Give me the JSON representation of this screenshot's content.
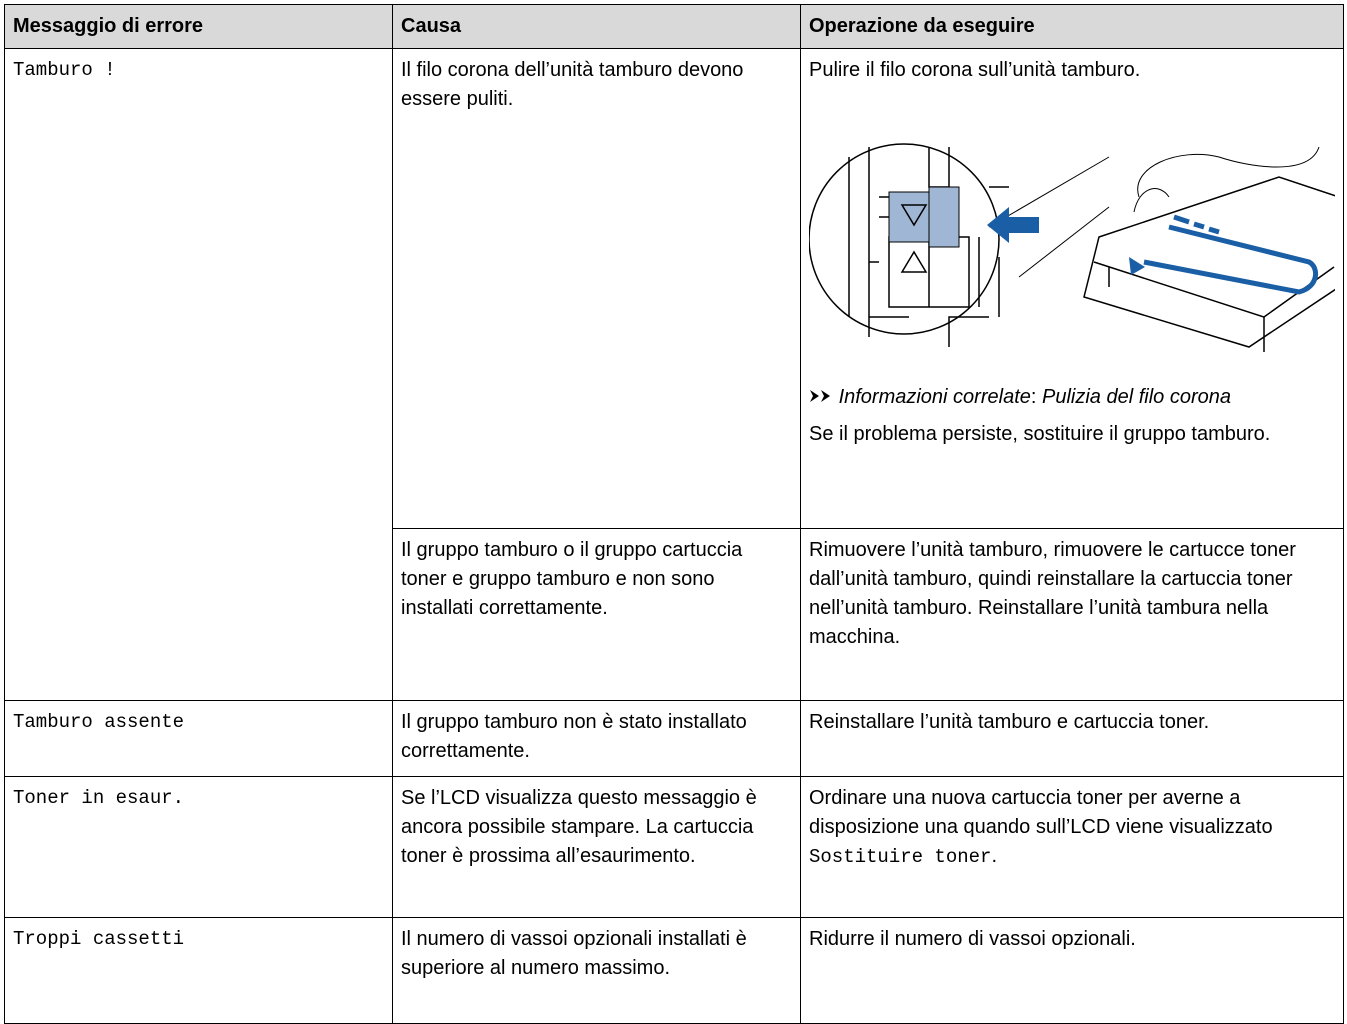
{
  "table": {
    "headers": [
      "Messaggio di errore",
      "Causa",
      "Operazione da eseguire"
    ],
    "rows": [
      {
        "message": "Tamburo !",
        "entries": [
          {
            "cause": "Il filo corona dell’unità tamburo devono essere puliti.",
            "action": "Pulire il filo corona sull’unità tamburo.",
            "related_label": "Informazioni correlate",
            "related_separator": ":",
            "related_link": "Pulizia del filo corona",
            "note": "Se il problema persiste, sostituire il gruppo tamburo."
          },
          {
            "cause": "Il gruppo tamburo o il gruppo cartuccia toner e gruppo tamburo e non sono installati correttamente.",
            "action": "Rimuovere l’unità tamburo, rimuovere le cartucce toner dall’unità tamburo, quindi reinstallare la cartuccia toner nell’unità tamburo. Reinstallare l’unità tambura nella macchina."
          }
        ]
      },
      {
        "message": "Tamburo assente",
        "entries": [
          {
            "cause": "Il gruppo tamburo non è stato installato correttamente.",
            "action": "Reinstallare l’unità tamburo e cartuccia toner."
          }
        ]
      },
      {
        "message": "Toner in esaur.",
        "entries": [
          {
            "cause": "Se l’LCD visualizza questo messaggio è ancora possibile stampare. La cartuccia toner è prossima all’esaurimento.",
            "action": "Ordinare una nuova cartuccia toner per averne a disposizione una quando sull’LCD viene visualizzato",
            "action_code": "Sostituire toner",
            "action_end": "."
          }
        ]
      },
      {
        "message": "Troppi cassetti",
        "entries": [
          {
            "cause": "Il numero di vassoi opzionali installati è superiore al numero massimo.",
            "action": "Ridurre il numero di vassoi opzionali."
          }
        ]
      }
    ]
  }
}
